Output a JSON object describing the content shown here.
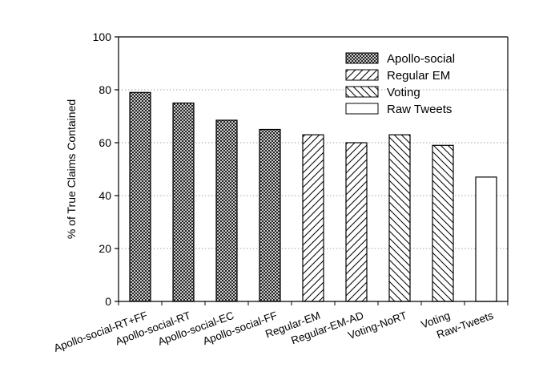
{
  "chart_data": {
    "type": "bar",
    "title": "",
    "xlabel": "",
    "ylabel": "% of True Claims Contained",
    "ylim": [
      0,
      100
    ],
    "yticks": [
      0,
      20,
      40,
      60,
      80,
      100
    ],
    "grid": "horizontal dotted",
    "legend_position": "top-right",
    "categories": [
      "Apollo-social-RT+FF",
      "Apollo-social-RT",
      "Apollo-social-EC",
      "Apollo-social-FF",
      "Regular-EM",
      "Regular-EM-AD",
      "Voting-NoRT",
      "Voting",
      "Raw-Tweets"
    ],
    "values": [
      79,
      75,
      68.5,
      65,
      63,
      60,
      63,
      59,
      47
    ],
    "groups": [
      "Apollo-social",
      "Apollo-social",
      "Apollo-social",
      "Apollo-social",
      "Regular EM",
      "Regular EM",
      "Voting",
      "Voting",
      "Raw Tweets"
    ],
    "legend": [
      {
        "name": "Apollo-social",
        "pattern": "crosshatch"
      },
      {
        "name": "Regular EM",
        "pattern": "forward-diagonal"
      },
      {
        "name": "Voting",
        "pattern": "backward-diagonal"
      },
      {
        "name": "Raw Tweets",
        "pattern": "none"
      }
    ]
  }
}
